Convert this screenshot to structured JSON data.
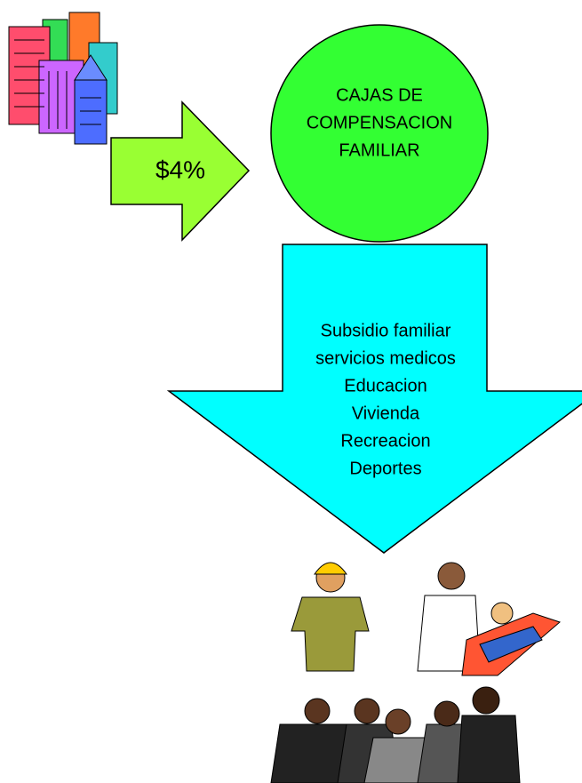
{
  "arrow_label": "$4%",
  "circle": {
    "lines": [
      "CAJAS DE",
      "COMPENSACION",
      "FAMILIAR"
    ]
  },
  "benefits": {
    "lines": [
      "Subsidio familiar",
      "servicios medicos",
      "Educacion",
      "Vivienda",
      "Recreacion",
      "Deportes"
    ]
  }
}
